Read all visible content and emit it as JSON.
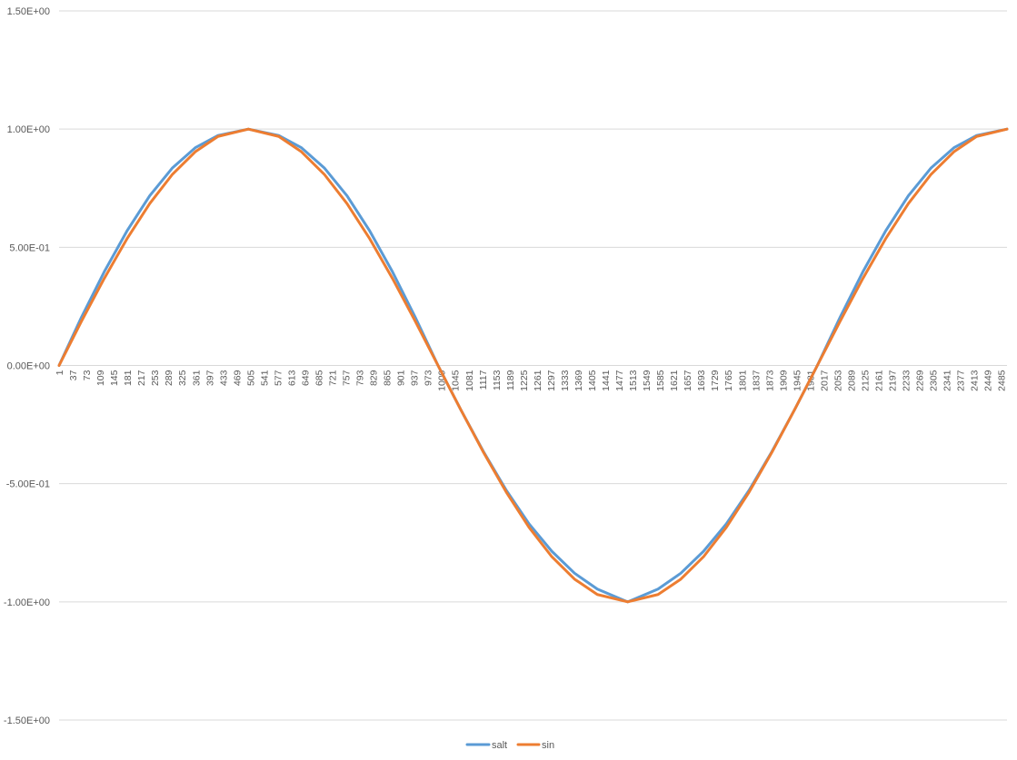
{
  "chart_data": {
    "type": "line",
    "title": "",
    "xlabel": "",
    "ylabel": "",
    "x_start": 1,
    "x_end": 2500,
    "x_tick_step": 36,
    "ylim": [
      -1.5,
      1.5
    ],
    "y_ticks": [
      {
        "value": 1.5,
        "label": "1.50E+00"
      },
      {
        "value": 1.0,
        "label": "1.00E+00"
      },
      {
        "value": 0.5,
        "label": "5.00E-01"
      },
      {
        "value": 0.0,
        "label": "0.00E+00"
      },
      {
        "value": -0.5,
        "label": "-5.00E-01"
      },
      {
        "value": -1.0,
        "label": "-1.00E+00"
      },
      {
        "value": -1.5,
        "label": "-1.50E+00"
      }
    ],
    "grid": true,
    "legend_position": "bottom",
    "series": [
      {
        "name": "salt",
        "color": "#5b9bd5",
        "x": [
          1,
          60,
          120,
          180,
          240,
          300,
          360,
          420,
          500,
          580,
          640,
          700,
          760,
          820,
          880,
          940,
          1000,
          1030,
          1060,
          1120,
          1180,
          1240,
          1300,
          1360,
          1420,
          1500,
          1580,
          1640,
          1700,
          1760,
          1820,
          1880,
          1940,
          1970,
          2000,
          2060,
          2120,
          2180,
          2240,
          2300,
          2360,
          2420,
          2500
        ],
        "values": [
          0.0,
          0.204,
          0.396,
          0.569,
          0.718,
          0.836,
          0.921,
          0.973,
          1.0,
          0.973,
          0.921,
          0.836,
          0.718,
          0.569,
          0.396,
          0.204,
          0.0,
          -0.094,
          -0.187,
          -0.365,
          -0.528,
          -0.67,
          -0.786,
          -0.879,
          -0.946,
          -1.0,
          -0.946,
          -0.879,
          -0.786,
          -0.67,
          -0.528,
          -0.365,
          -0.187,
          -0.094,
          0.0,
          0.204,
          0.396,
          0.569,
          0.718,
          0.836,
          0.921,
          0.973,
          1.0
        ]
      },
      {
        "name": "sin",
        "color": "#ed7d31",
        "x": [
          1,
          60,
          120,
          180,
          240,
          300,
          360,
          420,
          500,
          580,
          640,
          700,
          760,
          820,
          880,
          940,
          1000,
          1030,
          1060,
          1120,
          1180,
          1240,
          1300,
          1360,
          1420,
          1500,
          1580,
          1640,
          1700,
          1760,
          1820,
          1880,
          1940,
          1970,
          2000,
          2060,
          2120,
          2180,
          2240,
          2300,
          2360,
          2420,
          2500
        ],
        "values": [
          0.0,
          0.187,
          0.368,
          0.536,
          0.685,
          0.809,
          0.904,
          0.969,
          1.0,
          0.969,
          0.904,
          0.809,
          0.685,
          0.536,
          0.368,
          0.187,
          0.0,
          -0.094,
          -0.187,
          -0.368,
          -0.536,
          -0.685,
          -0.809,
          -0.904,
          -0.969,
          -1.0,
          -0.969,
          -0.904,
          -0.809,
          -0.685,
          -0.536,
          -0.368,
          -0.187,
          -0.094,
          0.0,
          0.187,
          0.368,
          0.536,
          0.685,
          0.809,
          0.904,
          0.969,
          1.0
        ]
      }
    ]
  }
}
